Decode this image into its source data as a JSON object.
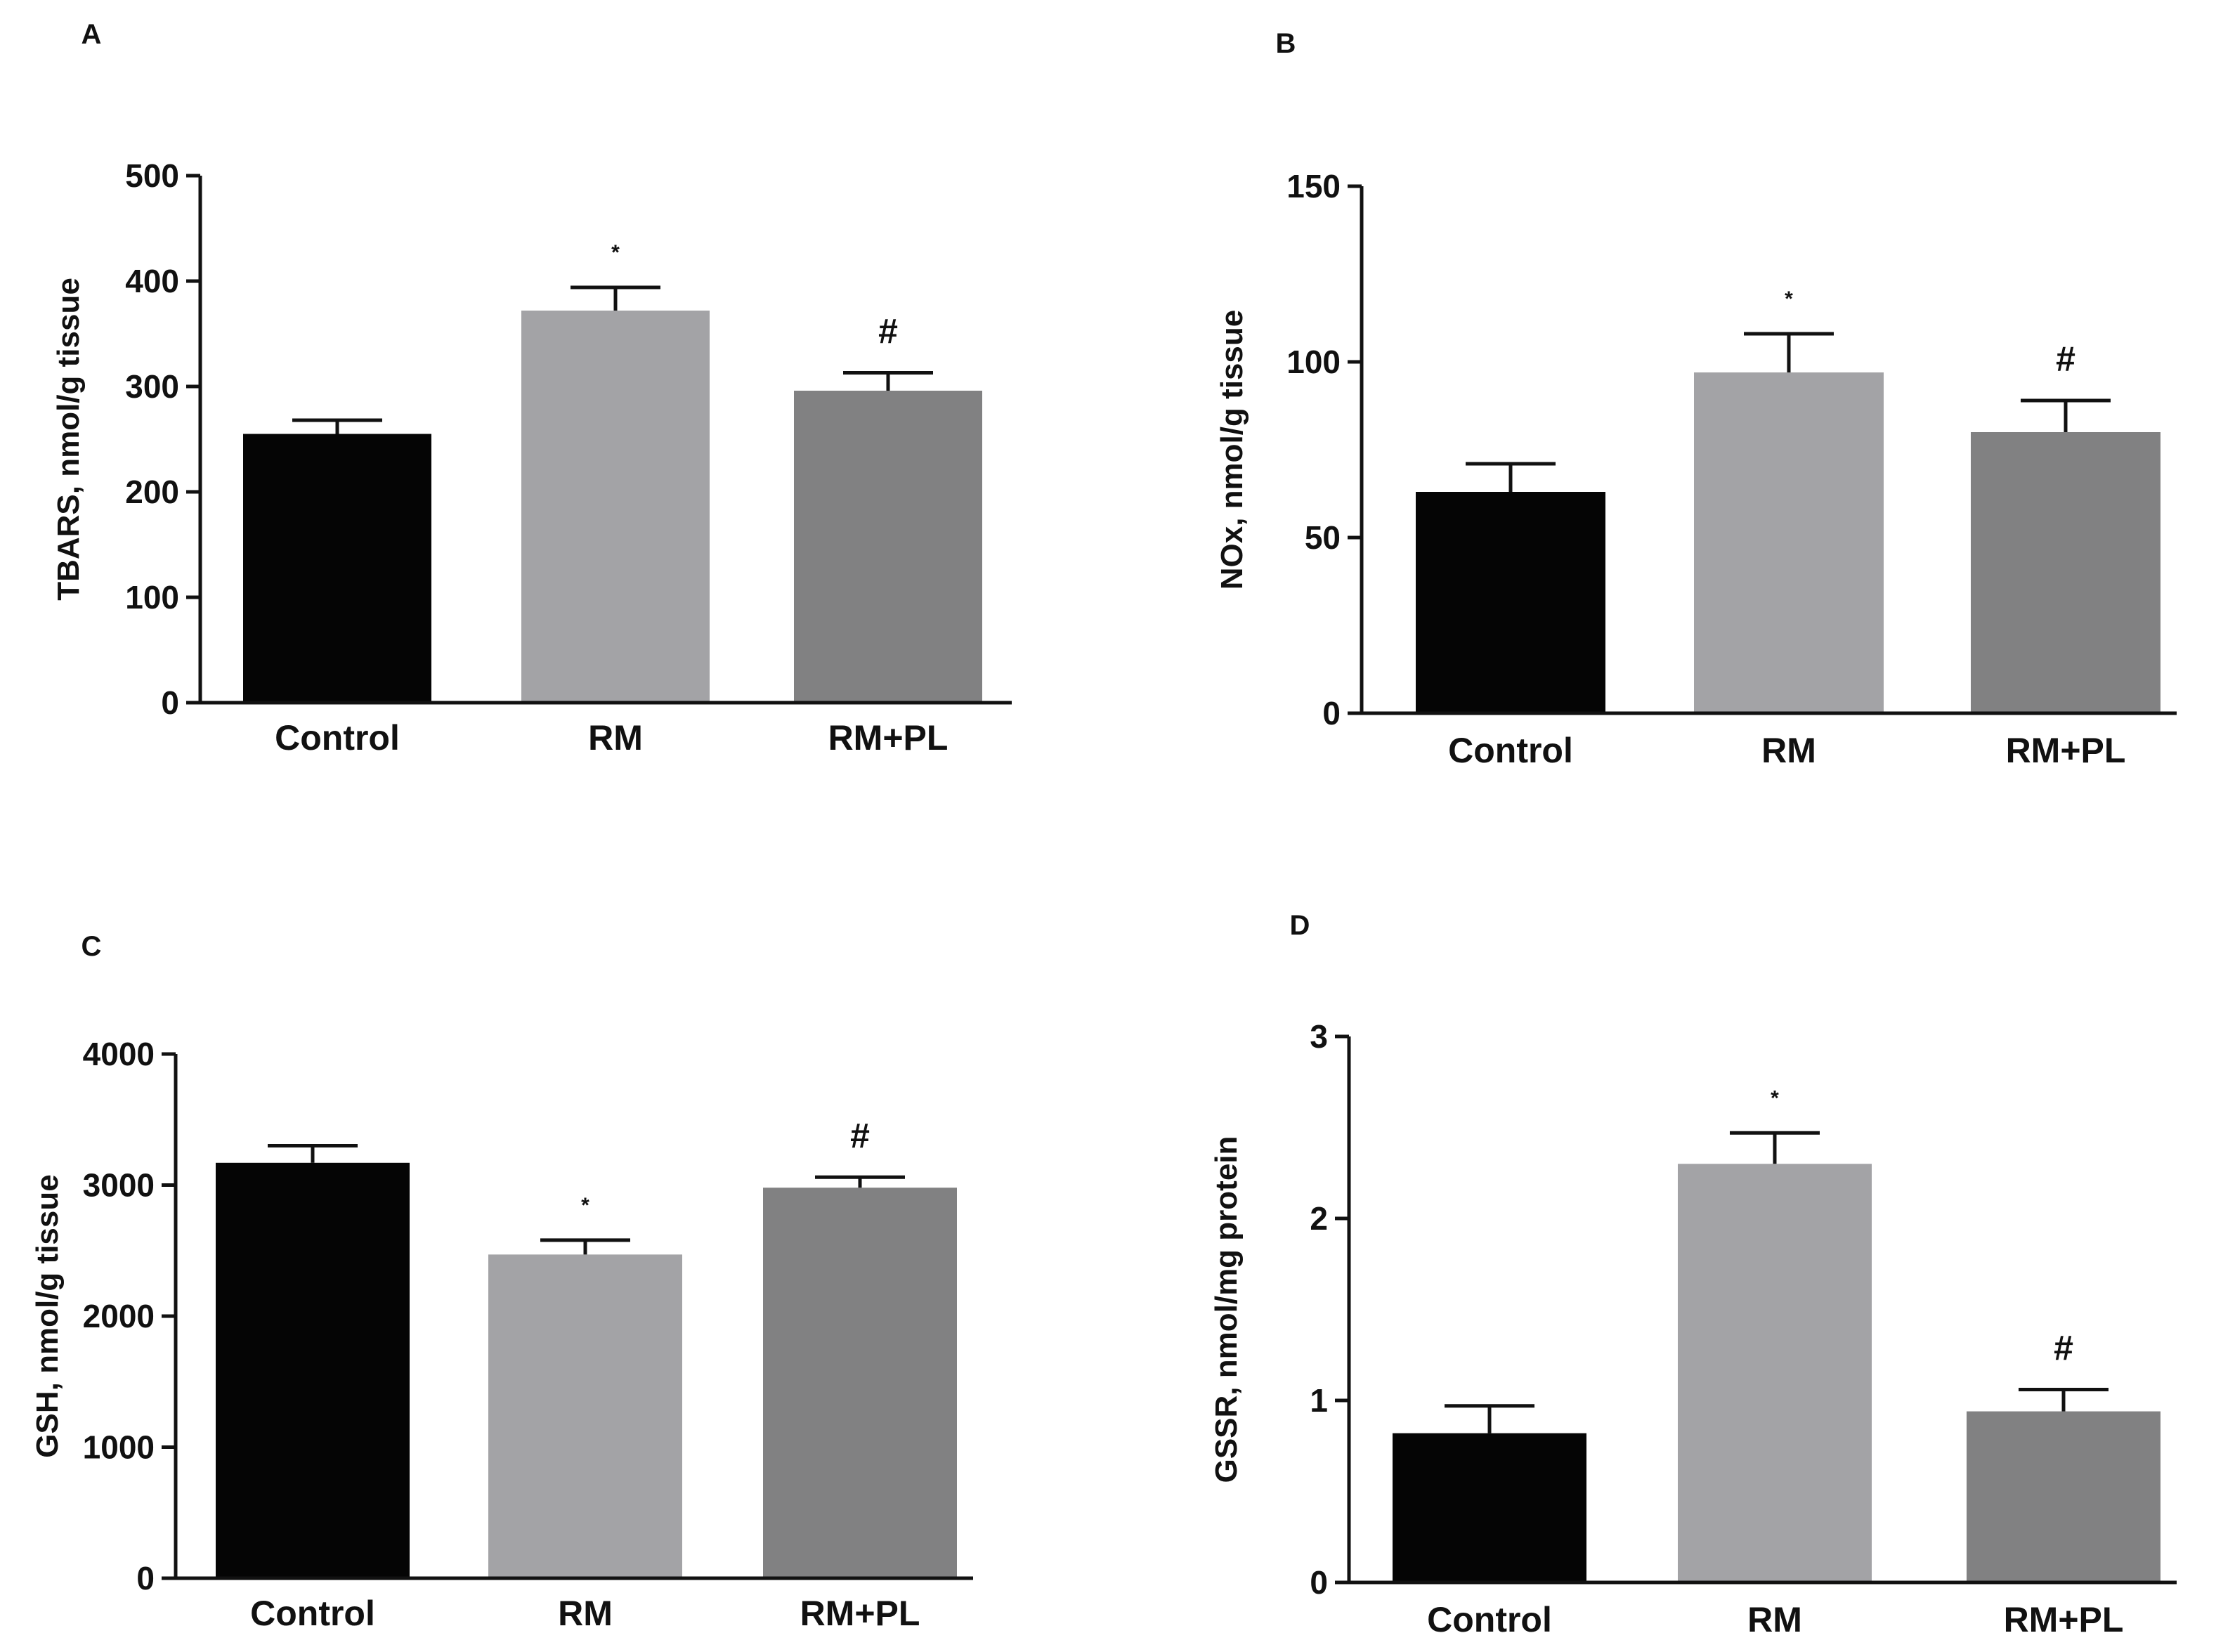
{
  "colors": {
    "Control": "#050505",
    "RM": "#a3a3a6",
    "RM+PL": "#818182"
  },
  "chart_data": [
    {
      "type": "bar",
      "panel": "A",
      "categories": [
        "Control",
        "RM",
        "RM+PL"
      ],
      "values": [
        255,
        372,
        296
      ],
      "errors": [
        13,
        22,
        17
      ],
      "annotations": [
        "",
        "*",
        "#"
      ],
      "ylabel": "TBARS, nmol/g tissue",
      "ylim": [
        0,
        500
      ],
      "yticks": [
        "0",
        "100",
        "200",
        "300",
        "400",
        "500"
      ]
    },
    {
      "type": "bar",
      "panel": "B",
      "categories": [
        "Control",
        "RM",
        "RM+PL"
      ],
      "values": [
        63,
        97,
        80
      ],
      "errors": [
        8,
        11,
        9
      ],
      "annotations": [
        "",
        "*",
        "#"
      ],
      "ylabel": "NOx, nmol/g tissue",
      "ylim": [
        0,
        150
      ],
      "yticks": [
        "0",
        "50",
        "100",
        "150"
      ]
    },
    {
      "type": "bar",
      "panel": "C",
      "categories": [
        "Control",
        "RM",
        "RM+PL"
      ],
      "values": [
        3170,
        2470,
        2980
      ],
      "errors": [
        130,
        110,
        80
      ],
      "annotations": [
        "",
        "*",
        "#"
      ],
      "ylabel": "GSH, nmol/g tissue",
      "ylim": [
        0,
        4000
      ],
      "yticks": [
        "0",
        "1000",
        "2000",
        "3000",
        "4000"
      ]
    },
    {
      "type": "bar",
      "panel": "D",
      "categories": [
        "Control",
        "RM",
        "RM+PL"
      ],
      "values": [
        0.82,
        2.3,
        0.94
      ],
      "errors": [
        0.15,
        0.17,
        0.12
      ],
      "annotations": [
        "",
        "*",
        "#"
      ],
      "ylabel": "GSSR, nmol/mg protein",
      "ylim": [
        0,
        3
      ],
      "yticks": [
        "0",
        "1",
        "2",
        "3"
      ]
    }
  ]
}
